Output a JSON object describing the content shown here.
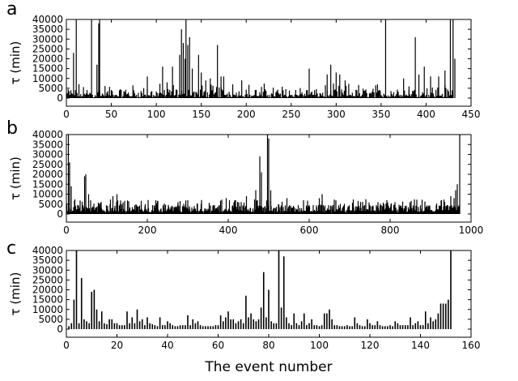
{
  "chart_data": [
    {
      "panel_label": "a",
      "type": "bar",
      "ylabel": "τ (min)",
      "xlabel": "",
      "xlim": [
        0,
        450
      ],
      "ylim": [
        0,
        40000
      ],
      "xticks": [
        0,
        50,
        100,
        150,
        200,
        250,
        300,
        350,
        400,
        450
      ],
      "yticks": [
        0,
        5000,
        10000,
        15000,
        20000,
        25000,
        30000,
        35000,
        40000
      ],
      "spikes": [
        {
          "x": 8,
          "y": 23000
        },
        {
          "x": 11,
          "y": 40000
        },
        {
          "x": 28,
          "y": 40000
        },
        {
          "x": 34,
          "y": 17000
        },
        {
          "x": 36,
          "y": 38000
        },
        {
          "x": 37,
          "y": 40000
        },
        {
          "x": 90,
          "y": 11000
        },
        {
          "x": 107,
          "y": 16000
        },
        {
          "x": 112,
          "y": 8000
        },
        {
          "x": 118,
          "y": 16000
        },
        {
          "x": 126,
          "y": 22000
        },
        {
          "x": 128,
          "y": 35000
        },
        {
          "x": 130,
          "y": 28000
        },
        {
          "x": 132,
          "y": 20000
        },
        {
          "x": 133,
          "y": 40000
        },
        {
          "x": 135,
          "y": 27000
        },
        {
          "x": 137,
          "y": 31000
        },
        {
          "x": 140,
          "y": 15000
        },
        {
          "x": 147,
          "y": 22000
        },
        {
          "x": 150,
          "y": 13000
        },
        {
          "x": 155,
          "y": 9000
        },
        {
          "x": 160,
          "y": 10000
        },
        {
          "x": 168,
          "y": 27000
        },
        {
          "x": 172,
          "y": 11000
        },
        {
          "x": 175,
          "y": 11000
        },
        {
          "x": 185,
          "y": 7000
        },
        {
          "x": 195,
          "y": 9000
        },
        {
          "x": 270,
          "y": 15000
        },
        {
          "x": 290,
          "y": 12000
        },
        {
          "x": 294,
          "y": 17000
        },
        {
          "x": 300,
          "y": 13000
        },
        {
          "x": 304,
          "y": 12000
        },
        {
          "x": 310,
          "y": 9000
        },
        {
          "x": 355,
          "y": 40000
        },
        {
          "x": 375,
          "y": 10000
        },
        {
          "x": 381,
          "y": 6000
        },
        {
          "x": 388,
          "y": 31000
        },
        {
          "x": 392,
          "y": 12000
        },
        {
          "x": 398,
          "y": 16000
        },
        {
          "x": 405,
          "y": 11000
        },
        {
          "x": 414,
          "y": 11000
        },
        {
          "x": 421,
          "y": 14000
        },
        {
          "x": 427,
          "y": 40000
        },
        {
          "x": 430,
          "y": 40000
        },
        {
          "x": 432,
          "y": 20000
        }
      ]
    },
    {
      "panel_label": "b",
      "type": "bar",
      "ylabel": "τ (min)",
      "xlabel": "",
      "xlim": [
        0,
        1000
      ],
      "ylim": [
        0,
        40000
      ],
      "xticks": [
        0,
        200,
        400,
        600,
        800,
        1000
      ],
      "yticks": [
        0,
        5000,
        10000,
        15000,
        20000,
        25000,
        30000,
        35000,
        40000
      ],
      "spikes": [
        {
          "x": 5,
          "y": 40000
        },
        {
          "x": 8,
          "y": 26000
        },
        {
          "x": 12,
          "y": 14000
        },
        {
          "x": 45,
          "y": 19000
        },
        {
          "x": 48,
          "y": 20000
        },
        {
          "x": 55,
          "y": 10000
        },
        {
          "x": 115,
          "y": 9000
        },
        {
          "x": 125,
          "y": 10000
        },
        {
          "x": 195,
          "y": 5000
        },
        {
          "x": 300,
          "y": 7000
        },
        {
          "x": 395,
          "y": 8000
        },
        {
          "x": 418,
          "y": 7000
        },
        {
          "x": 432,
          "y": 6000
        },
        {
          "x": 445,
          "y": 9000
        },
        {
          "x": 468,
          "y": 12000
        },
        {
          "x": 478,
          "y": 29000
        },
        {
          "x": 482,
          "y": 21000
        },
        {
          "x": 497,
          "y": 40000
        },
        {
          "x": 500,
          "y": 38000
        },
        {
          "x": 505,
          "y": 12000
        },
        {
          "x": 545,
          "y": 8000
        },
        {
          "x": 625,
          "y": 8000
        },
        {
          "x": 632,
          "y": 10000
        },
        {
          "x": 770,
          "y": 6000
        },
        {
          "x": 935,
          "y": 6000
        },
        {
          "x": 950,
          "y": 9000
        },
        {
          "x": 958,
          "y": 8000
        },
        {
          "x": 962,
          "y": 12000
        },
        {
          "x": 966,
          "y": 15000
        },
        {
          "x": 972,
          "y": 40000
        }
      ]
    },
    {
      "panel_label": "c",
      "type": "bar",
      "ylabel": "τ (min)",
      "xlabel": "The event number",
      "xlim": [
        0,
        160
      ],
      "ylim": [
        0,
        40000
      ],
      "xticks": [
        0,
        20,
        40,
        60,
        80,
        100,
        120,
        140,
        160
      ],
      "yticks": [
        0,
        5000,
        10000,
        15000,
        20000,
        25000,
        30000,
        35000,
        40000
      ],
      "values": [
        1500,
        3000,
        15000,
        40000,
        3000,
        26000,
        5000,
        4000,
        3000,
        19000,
        20000,
        10000,
        4000,
        9000,
        3000,
        2500,
        5000,
        5000,
        3000,
        3000,
        2000,
        2000,
        2000,
        9000,
        3000,
        6000,
        3000,
        10000,
        4000,
        5000,
        2000,
        6000,
        3000,
        2500,
        2000,
        1500,
        6000,
        2000,
        2000,
        4000,
        3000,
        2000,
        1500,
        1500,
        2000,
        2000,
        2000,
        7000,
        2000,
        5000,
        3000,
        4000,
        2000,
        1500,
        1500,
        1500,
        1500,
        1500,
        2000,
        2000,
        7000,
        4000,
        6000,
        9000,
        5000,
        5000,
        3000,
        4000,
        5000,
        3000,
        17000,
        6000,
        8000,
        5000,
        4000,
        5000,
        11000,
        29000,
        6000,
        20000,
        4000,
        3000,
        3000,
        40000,
        11000,
        37000,
        6000,
        3000,
        2000,
        8000,
        3000,
        2000,
        4000,
        8000,
        2000,
        3000,
        5000,
        2000,
        2000,
        1500,
        2000,
        8000,
        8000,
        10000,
        5000,
        2000,
        2000,
        1500,
        1500,
        1500,
        2000,
        1500,
        1500,
        6000,
        3000,
        2000,
        1500,
        1500,
        5000,
        3000,
        2000,
        2000,
        4000,
        2000,
        1500,
        1500,
        1500,
        2000,
        1500,
        4000,
        3000,
        2000,
        2000,
        2000,
        2000,
        6000,
        2000,
        3000,
        4000,
        2000,
        2000,
        9000,
        3000,
        6000,
        4000,
        5000,
        8000,
        13000,
        13000,
        13000,
        15000,
        40000
      ]
    }
  ]
}
